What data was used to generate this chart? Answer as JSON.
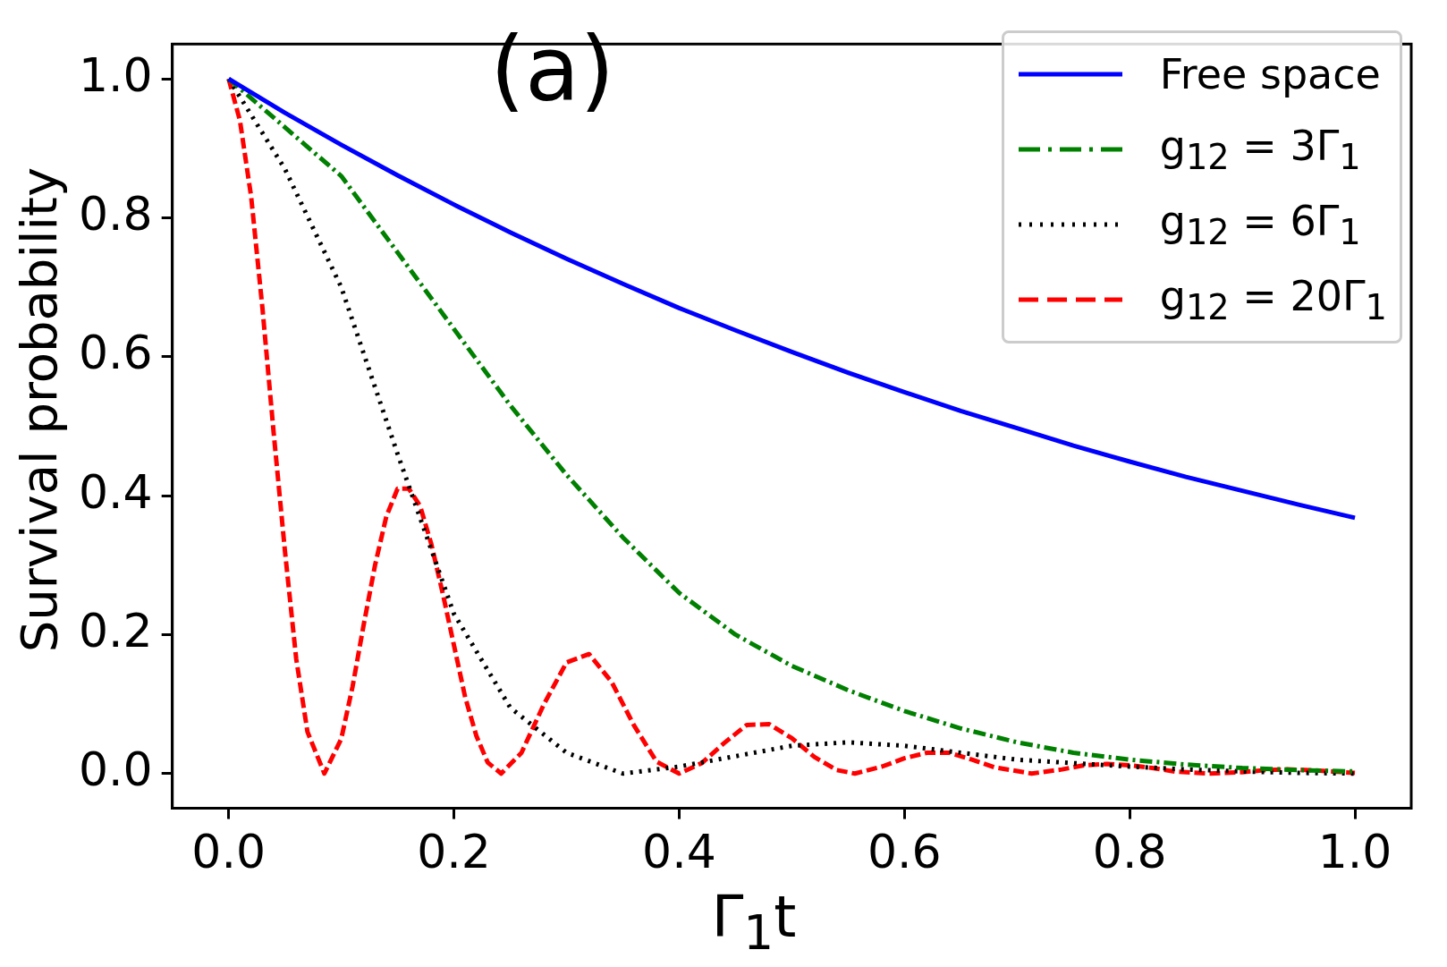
{
  "chart_data": {
    "type": "line",
    "xlabel": "Γ$_{1}$t",
    "ylabel": "Survival probability",
    "annotations": [
      "(a)"
    ],
    "legend": "top right",
    "xlim": [
      -0.05,
      1.05
    ],
    "ylim": [
      -0.05,
      1.05
    ],
    "xticks": [
      {
        "value": 0,
        "label": "0.0"
      },
      0.2,
      0.4,
      0.6,
      0.8,
      {
        "value": 1,
        "label": "1.0"
      }
    ],
    "yticks": [
      {
        "value": 0,
        "label": "0.0"
      },
      0.2,
      0.4,
      0.6,
      0.8,
      {
        "value": 1,
        "label": "1.0"
      }
    ],
    "x": [
      0,
      0.05,
      0.1,
      0.15,
      0.2,
      0.25,
      0.3,
      0.35,
      0.4,
      0.45,
      0.5,
      0.55,
      0.6,
      0.65,
      0.7,
      0.75,
      0.8,
      0.85,
      0.9,
      0.95,
      1.0
    ],
    "series": [
      {
        "name": "Free space",
        "color": "#0000ff",
        "line_style": "solid",
        "values": [
          1,
          0.951,
          0.905,
          0.861,
          0.819,
          0.779,
          0.741,
          0.705,
          0.67,
          0.638,
          0.607,
          0.577,
          0.549,
          0.522,
          0.497,
          0.472,
          0.449,
          0.427,
          0.407,
          0.387,
          0.368
        ]
      },
      {
        "name": "g$_{12}$ = 3Γ$_{1}$",
        "color": "#008000",
        "line_style": "dashdot",
        "values": [
          1,
          0.93,
          0.86,
          0.75,
          0.64,
          0.53,
          0.43,
          0.34,
          0.26,
          0.2,
          0.155,
          0.12,
          0.09,
          0.065,
          0.045,
          0.03,
          0.02,
          0.013,
          0.008,
          0.005,
          0.003
        ]
      },
      {
        "name": "g$_{12}$ = 6Γ$_{1}$",
        "color": "#000000",
        "line_style": "dotted",
        "values": [
          1,
          0.87,
          0.7,
          0.46,
          0.23,
          0.095,
          0.03,
          0,
          0.01,
          0.025,
          0.04,
          0.045,
          0.04,
          0.03,
          0.02,
          0.015,
          0.01,
          0.006,
          0.003,
          0.001,
          0
        ]
      },
      {
        "name": "g$_{12}$ = 20Γ$_{1}$",
        "color": "#ff0000",
        "line_style": "dashed",
        "x": [
          0,
          0.01,
          0.02,
          0.03,
          0.04,
          0.05,
          0.06,
          0.07,
          0.085,
          0.1,
          0.11,
          0.12,
          0.13,
          0.14,
          0.15,
          0.16,
          0.17,
          0.18,
          0.19,
          0.2,
          0.21,
          0.22,
          0.23,
          0.242,
          0.26,
          0.28,
          0.3,
          0.32,
          0.34,
          0.36,
          0.38,
          0.4,
          0.42,
          0.44,
          0.46,
          0.48,
          0.5,
          0.52,
          0.54,
          0.556,
          0.58,
          0.6,
          0.62,
          0.64,
          0.66,
          0.68,
          0.713,
          0.74,
          0.76,
          0.78,
          0.8,
          0.82,
          0.84,
          0.87,
          0.9,
          0.92,
          0.94,
          0.96,
          0.98,
          1.0
        ],
        "values": [
          1,
          0.94,
          0.83,
          0.67,
          0.49,
          0.32,
          0.165,
          0.06,
          0,
          0.05,
          0.125,
          0.215,
          0.3,
          0.37,
          0.41,
          0.41,
          0.385,
          0.33,
          0.26,
          0.185,
          0.11,
          0.054,
          0.016,
          0,
          0.03,
          0.1,
          0.16,
          0.172,
          0.132,
          0.069,
          0.017,
          0,
          0.015,
          0.044,
          0.07,
          0.071,
          0.051,
          0.024,
          0.005,
          0,
          0.01,
          0.022,
          0.03,
          0.03,
          0.02,
          0.009,
          0,
          0.006,
          0.012,
          0.014,
          0.012,
          0.008,
          0.003,
          0,
          0.002,
          0.005,
          0.006,
          0.005,
          0.003,
          0.001
        ]
      }
    ]
  }
}
